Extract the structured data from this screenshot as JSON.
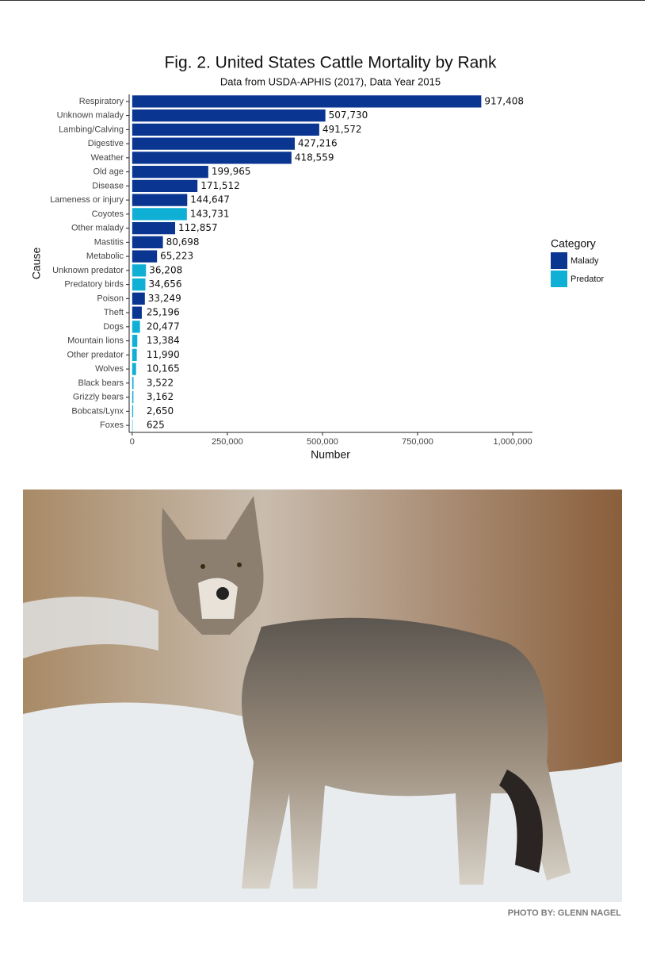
{
  "chart_data": {
    "type": "bar",
    "orientation": "horizontal",
    "title": "Fig. 2. United States Cattle Mortality by Rank",
    "subtitle": "Data from USDA-APHIS (2017), Data Year 2015",
    "y_label": "Cause",
    "x_label": "Number",
    "legend_title": "Category",
    "legend": "right",
    "categories": [
      "Respiratory",
      "Unknown malady",
      "Lambing/Calving",
      "Digestive",
      "Weather",
      "Old age",
      "Disease",
      "Lameness or injury",
      "Coyotes",
      "Other malady",
      "Mastitis",
      "Metabolic",
      "Unknown predator",
      "Predatory birds",
      "Poison",
      "Theft",
      "Dogs",
      "Mountain lions",
      "Other predator",
      "Wolves",
      "Black bears",
      "Grizzly bears",
      "Bobcats/Lynx",
      "Foxes"
    ],
    "series": [
      {
        "name": "Malady",
        "color": "#0a3591",
        "values": [
          917408,
          507730,
          491572,
          427216,
          418559,
          199965,
          171512,
          144647,
          null,
          112857,
          80698,
          65223,
          null,
          null,
          33249,
          25196,
          null,
          null,
          null,
          null,
          null,
          null,
          null,
          null
        ],
        "value_labels": [
          "917,408",
          "507,730",
          "491,572",
          "427,216",
          "418,559",
          "199,965",
          "171,512",
          "144,647",
          null,
          "112,857",
          "80,698",
          "65,223",
          null,
          null,
          "33,249",
          "25,196",
          null,
          null,
          null,
          null,
          null,
          null,
          null,
          null
        ]
      },
      {
        "name": "Predator",
        "color": "#10afd5",
        "values": [
          null,
          null,
          null,
          null,
          null,
          null,
          null,
          null,
          143731,
          null,
          null,
          null,
          36208,
          34656,
          null,
          null,
          20477,
          13384,
          11990,
          10165,
          3522,
          3162,
          2650,
          625
        ],
        "value_labels": [
          null,
          null,
          null,
          null,
          null,
          null,
          null,
          null,
          "143,731",
          null,
          null,
          null,
          "36,208",
          "34,656",
          null,
          null,
          "20,477",
          "13,384",
          "11,990",
          "10,165",
          "3,522",
          "3,162",
          "2,650",
          "625"
        ]
      }
    ],
    "xlim": [
      -8000,
      1052000
    ],
    "xticks": [
      0,
      {
        "value": 250000,
        "label": "250,000"
      },
      {
        "value": 500000,
        "label": "500,000"
      },
      {
        "value": 750000,
        "label": "750,000"
      },
      {
        "value": 1000000,
        "label": "1,000,000"
      }
    ]
  },
  "photo": {
    "credit": "PHOTO BY: GLENN NAGEL"
  }
}
